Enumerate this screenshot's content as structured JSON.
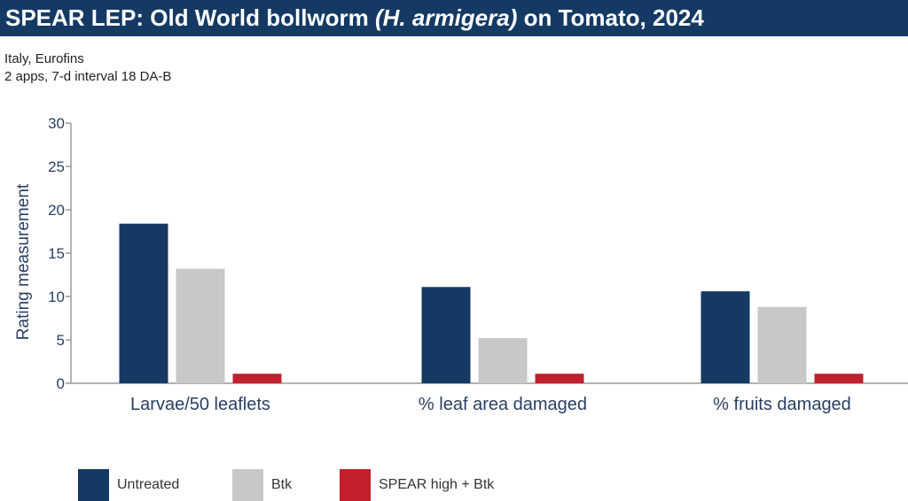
{
  "header": {
    "title_main": "SPEAR LEP: Old World bollworm ",
    "title_italic": "(H. armigera)",
    "title_tail": " on Tomato, 2024"
  },
  "subtitle": {
    "line1": "Italy, Eurofins",
    "line2": "2 apps, 7-d interval 18 DA-B"
  },
  "colors": {
    "header_bg": "#143a64",
    "untreated": "#143a64",
    "btk": "#c8c8c8",
    "spear": "#c1202c",
    "axis": "#9a9a9a",
    "axis_text": "#2a3f63"
  },
  "chart_data": {
    "type": "bar",
    "title": "",
    "xlabel": "",
    "ylabel": "Rating measurement",
    "ylim": [
      0,
      30
    ],
    "yticks": [
      "0",
      "5",
      "10",
      "15",
      "20",
      "25",
      "30"
    ],
    "grid": false,
    "legend_position": "bottom",
    "categories": [
      "Larvae/50 leaflets",
      "% leaf area damaged",
      "% fruits damaged"
    ],
    "series": [
      {
        "name": "Untreated",
        "color": "#143a64",
        "values": [
          18.4,
          11.1,
          10.6
        ]
      },
      {
        "name": "Btk",
        "color": "#c8c8c8",
        "values": [
          13.2,
          5.2,
          8.8
        ]
      },
      {
        "name": "SPEAR high + Btk",
        "color": "#c1202c",
        "values": [
          1.1,
          1.1,
          1.1
        ]
      }
    ]
  }
}
